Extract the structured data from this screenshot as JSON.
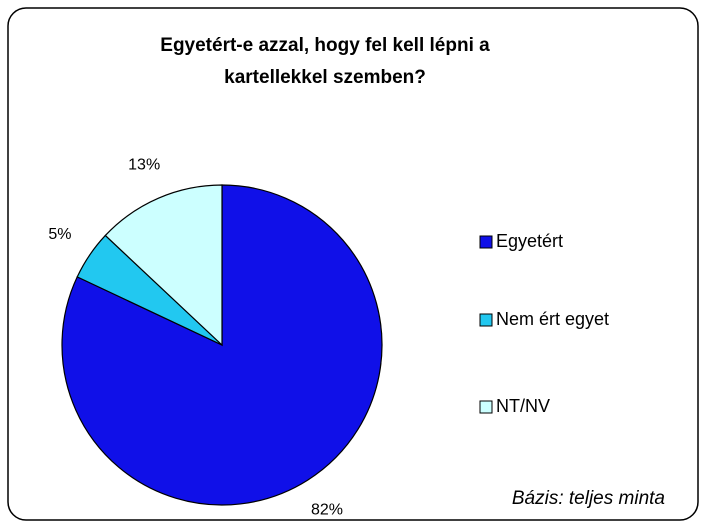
{
  "chart_data": {
    "type": "pie",
    "title": "Egyetért-e azzal, hogy fel kell lépni a kartellekkel szemben?",
    "categories": [
      "Egyetért",
      "Nem ért egyet",
      "NT/NV"
    ],
    "values": [
      82,
      5,
      13
    ],
    "value_labels": [
      "82%",
      "5%",
      "13%"
    ],
    "colors": [
      "#1010e8",
      "#22c8f0",
      "#ccffff"
    ],
    "legend": "right",
    "annotation": "Bázis: teljes minta"
  }
}
